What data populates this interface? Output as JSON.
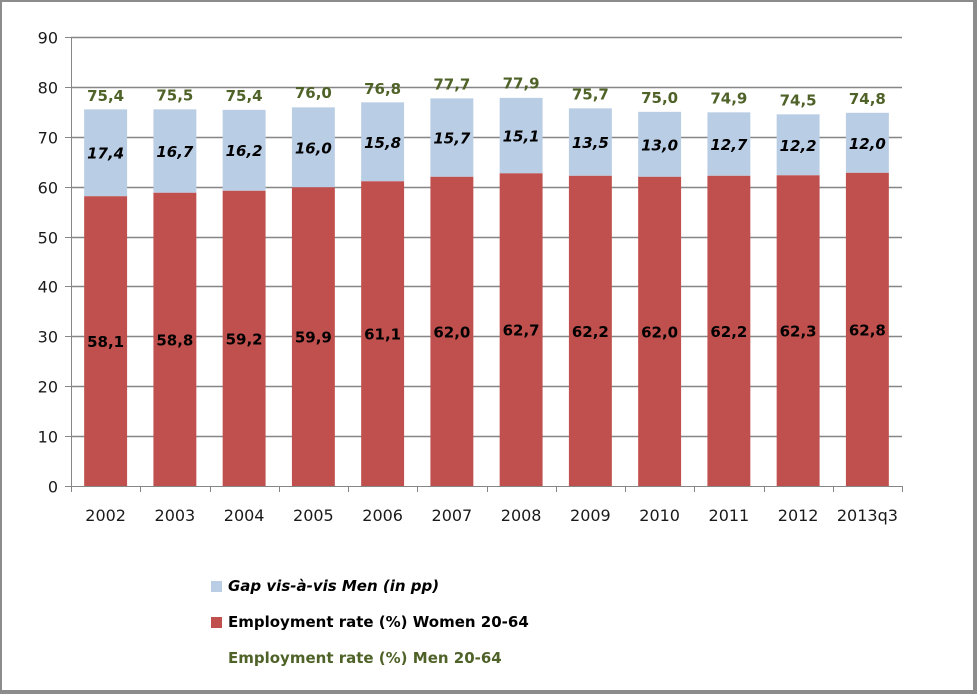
{
  "chart_data": {
    "type": "bar",
    "stacked": true,
    "title": "",
    "xlabel": "",
    "ylabel": "",
    "categories": [
      "2002",
      "2003",
      "2004",
      "2005",
      "2006",
      "2007",
      "2008",
      "2009",
      "2010",
      "2011",
      "2012",
      "2013q3"
    ],
    "ylim": [
      0,
      90
    ],
    "yticks": [
      0,
      10,
      20,
      30,
      40,
      50,
      60,
      70,
      80,
      90
    ],
    "grid": true,
    "legend_position": "bottom-left",
    "series": [
      {
        "name": "Employment rate (%) Women 20-64",
        "color": "#c0504d",
        "values": [
          58.1,
          58.8,
          59.2,
          59.9,
          61.1,
          62.0,
          62.7,
          62.2,
          62.0,
          62.2,
          62.3,
          62.8
        ],
        "labels": [
          "58,1",
          "58,8",
          "59,2",
          "59,9",
          "61,1",
          "62,0",
          "62,7",
          "62,2",
          "62,0",
          "62,2",
          "62,3",
          "62,8"
        ]
      },
      {
        "name": "Gap vis-à-vis Men (in pp)",
        "color": "#b9cde5",
        "values": [
          17.4,
          16.7,
          16.2,
          16.0,
          15.8,
          15.7,
          15.1,
          13.5,
          13.0,
          12.7,
          12.2,
          12.0
        ],
        "labels": [
          "17,4",
          "16,7",
          "16,2",
          "16,0",
          "15,8",
          "15,7",
          "15,1",
          "13,5",
          "13,0",
          "12,7",
          "12,2",
          "12,0"
        ]
      },
      {
        "name": "Employment rate (%) Men 20-64",
        "color": "#4f6228",
        "marker": "label-only",
        "values": [
          75.4,
          75.5,
          75.4,
          76.0,
          76.8,
          77.7,
          77.9,
          75.7,
          75.0,
          74.9,
          74.5,
          74.8
        ],
        "labels": [
          "75,4",
          "75,5",
          "75,4",
          "76,0",
          "76,8",
          "77,7",
          "77,9",
          "75,7",
          "75,0",
          "74,9",
          "74,5",
          "74,8"
        ]
      }
    ]
  },
  "legend": {
    "items": [
      {
        "label": "Gap vis-à-vis Men (in pp)",
        "color": "#b9cde5"
      },
      {
        "label": "Employment rate (%) Women 20-64",
        "color": "#c0504d"
      },
      {
        "label": "Employment rate (%) Men 20-64",
        "color": ""
      }
    ]
  }
}
